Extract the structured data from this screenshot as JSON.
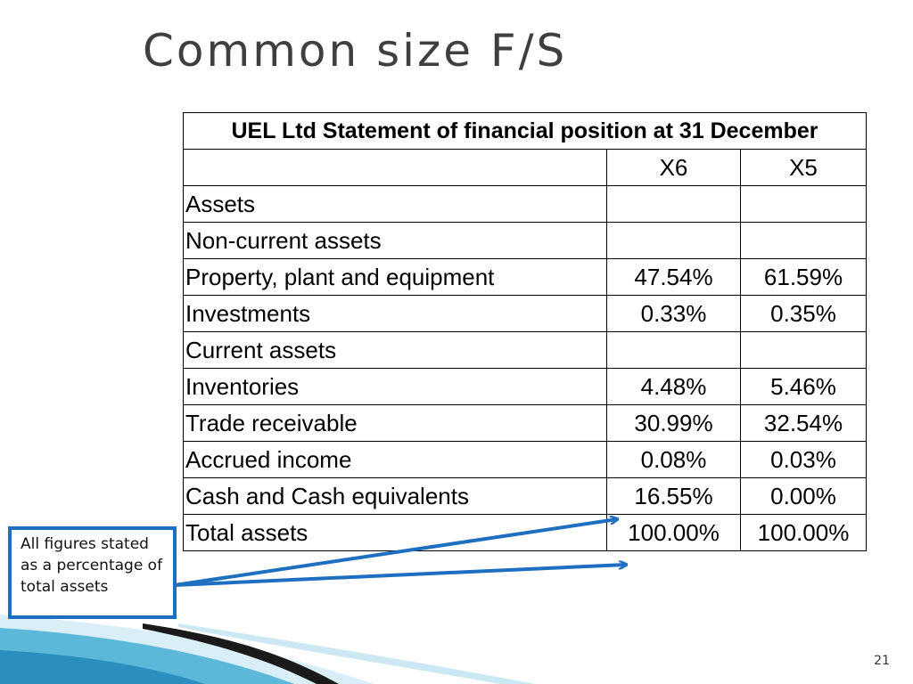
{
  "slide": {
    "title": "Common size F/S",
    "page_number": "21",
    "callout_text": "All figures stated as a percentage of total assets"
  },
  "table": {
    "header": "UEL Ltd Statement of financial position at 31 December",
    "col1": "X6",
    "col2": "X5",
    "rows": [
      {
        "label": "Assets",
        "x6": "",
        "x5": ""
      },
      {
        "label": "Non-current assets",
        "x6": "",
        "x5": ""
      },
      {
        "label": "Property, plant and equipment",
        "x6": "47.54%",
        "x5": "61.59%"
      },
      {
        "label": "Investments",
        "x6": "0.33%",
        "x5": "0.35%"
      },
      {
        "label": "Current assets",
        "x6": "",
        "x5": ""
      },
      {
        "label": "Inventories",
        "x6": "4.48%",
        "x5": "5.46%"
      },
      {
        "label": "Trade receivable",
        "x6": "30.99%",
        "x5": "32.54%"
      },
      {
        "label": "Accrued income",
        "x6": "0.08%",
        "x5": "0.03%"
      },
      {
        "label": "Cash and Cash equivalents",
        "x6": "16.55%",
        "x5": "0.00%"
      },
      {
        "label": "Total assets",
        "x6": "100.00%",
        "x5": "100.00%"
      }
    ]
  },
  "colors": {
    "arrow": "#1f6fc0",
    "title": "#3f3f3f",
    "wave_light": "#bfe3f0",
    "wave_mid": "#5bb8d8",
    "wave_dark": "#1a1a1a"
  }
}
